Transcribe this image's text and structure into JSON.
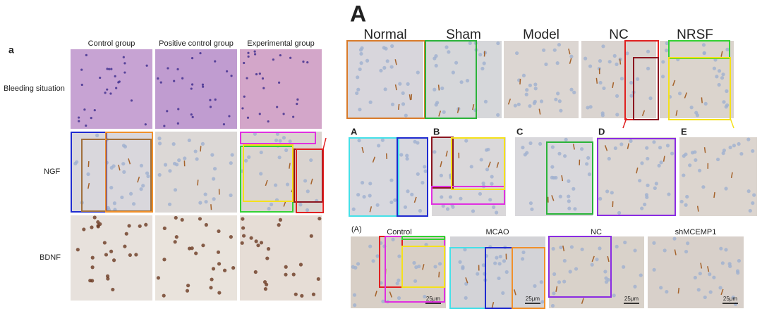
{
  "panel_a": {
    "label": "a",
    "columns": [
      "Control group",
      "Positive control group",
      "Experimental group"
    ],
    "rows": [
      "Bleeding situation",
      "NGF",
      "BDNF"
    ]
  },
  "panel_A": {
    "label": "A",
    "columns": [
      "Normal",
      "Sham",
      "Model",
      "NC",
      "NRSF"
    ]
  },
  "panel_B": {
    "labels": [
      "A",
      "B",
      "C",
      "D",
      "E"
    ]
  },
  "panel_C": {
    "label": "(A)",
    "columns": [
      "Control",
      "MCAO",
      "NC",
      "shMCEMP1"
    ],
    "scale_bars": [
      "25μm",
      "25μm",
      "25μm",
      "25μm"
    ]
  }
}
